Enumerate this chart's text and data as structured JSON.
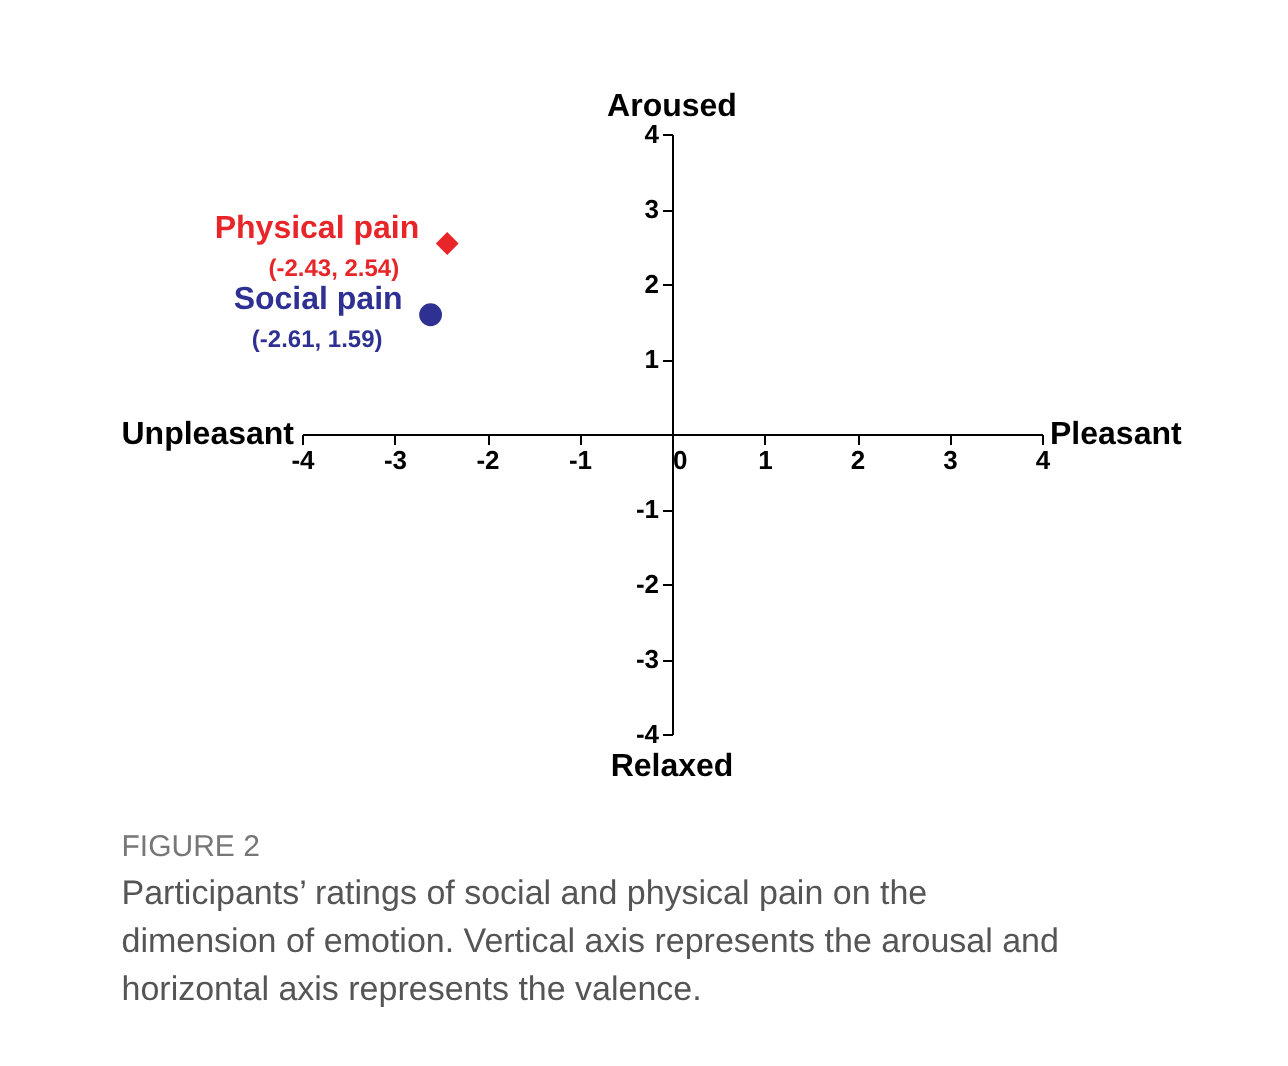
{
  "chart_data": {
    "type": "scatter",
    "title": "FIGURE 2",
    "subtitle": "Participants’ ratings of social and physical pain on the dimension of emotion. Vertical axis represents the arousal and horizontal axis represents the valence.",
    "xlabel": "Pleasant",
    "ylabel": "Aroused",
    "annotations": [
      "Unpleasant",
      "Relaxed"
    ],
    "xlim": [
      -4,
      4
    ],
    "ylim": [
      -4,
      4
    ],
    "xticks": [
      -4,
      -3,
      -2,
      -1,
      0,
      1,
      2,
      3,
      4
    ],
    "yticks": [
      -4,
      -3,
      -2,
      -1,
      1,
      2,
      3,
      4
    ],
    "grid": false,
    "series": [
      {
        "name": "Physical pain",
        "color": "#e8262a",
        "marker": "diamond",
        "x": [
          -2.43
        ],
        "values": [
          2.54
        ],
        "value_labels": [
          "(-2.43, 2.54)"
        ]
      },
      {
        "name": "Social pain",
        "color": "#2e3192",
        "marker": "circle",
        "x": [
          -2.61
        ],
        "values": [
          1.59
        ],
        "value_labels": [
          "(-2.61, 1.59)"
        ]
      }
    ]
  }
}
